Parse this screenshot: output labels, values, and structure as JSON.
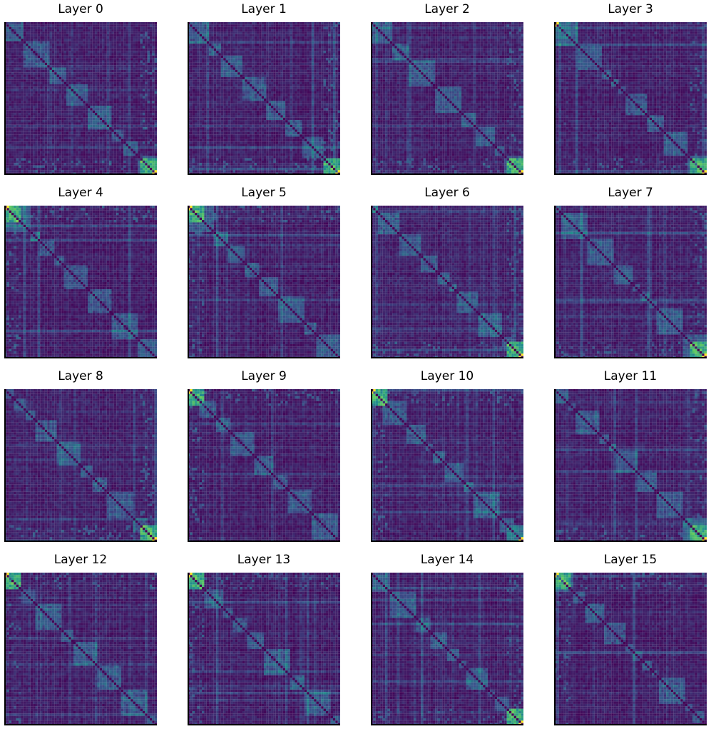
{
  "chart_data": [
    {
      "type": "heatmap",
      "title": "Layer 0",
      "xlabel": "",
      "ylabel": "",
      "colormap": "viridis",
      "grid": false,
      "ticks": false,
      "colorscale": [
        "#440154",
        "#3b528b",
        "#21918c",
        "#5ec962",
        "#fde725"
      ],
      "hotspots": [
        {
          "block": "bottom-right",
          "intensity": "high"
        }
      ]
    },
    {
      "type": "heatmap",
      "title": "Layer 1",
      "xlabel": "",
      "ylabel": "",
      "colormap": "viridis",
      "grid": false,
      "ticks": false,
      "hotspots": [
        {
          "block": "bottom-right",
          "intensity": "high"
        }
      ]
    },
    {
      "type": "heatmap",
      "title": "Layer 2",
      "xlabel": "",
      "ylabel": "",
      "colormap": "viridis",
      "grid": false,
      "ticks": false,
      "hotspots": [
        {
          "block": "bottom-right",
          "intensity": "high"
        }
      ]
    },
    {
      "type": "heatmap",
      "title": "Layer 3",
      "xlabel": "",
      "ylabel": "",
      "colormap": "viridis",
      "grid": false,
      "ticks": false,
      "hotspots": [
        {
          "block": "top-left",
          "intensity": "medium"
        },
        {
          "block": "bottom-right",
          "intensity": "high"
        }
      ]
    },
    {
      "type": "heatmap",
      "title": "Layer 4",
      "xlabel": "",
      "ylabel": "",
      "colormap": "viridis",
      "grid": false,
      "ticks": false,
      "hotspots": [
        {
          "block": "top-left",
          "intensity": "high"
        }
      ]
    },
    {
      "type": "heatmap",
      "title": "Layer 5",
      "xlabel": "",
      "ylabel": "",
      "colormap": "viridis",
      "grid": false,
      "ticks": false,
      "hotspots": [
        {
          "block": "top-left",
          "intensity": "high"
        }
      ]
    },
    {
      "type": "heatmap",
      "title": "Layer 6",
      "xlabel": "",
      "ylabel": "",
      "colormap": "viridis",
      "grid": false,
      "ticks": false,
      "hotspots": [
        {
          "block": "bottom-right",
          "intensity": "high"
        }
      ]
    },
    {
      "type": "heatmap",
      "title": "Layer 7",
      "xlabel": "",
      "ylabel": "",
      "colormap": "viridis",
      "grid": false,
      "ticks": false,
      "hotspots": [
        {
          "block": "bottom-right",
          "intensity": "high"
        }
      ]
    },
    {
      "type": "heatmap",
      "title": "Layer 8",
      "xlabel": "",
      "ylabel": "",
      "colormap": "viridis",
      "grid": false,
      "ticks": false,
      "hotspots": [
        {
          "block": "bottom-right",
          "intensity": "high"
        }
      ]
    },
    {
      "type": "heatmap",
      "title": "Layer 9",
      "xlabel": "",
      "ylabel": "",
      "colormap": "viridis",
      "grid": false,
      "ticks": false,
      "hotspots": [
        {
          "block": "top-left",
          "intensity": "high"
        }
      ]
    },
    {
      "type": "heatmap",
      "title": "Layer 10",
      "xlabel": "",
      "ylabel": "",
      "colormap": "viridis",
      "grid": false,
      "ticks": false,
      "hotspots": [
        {
          "block": "top-left",
          "intensity": "high"
        },
        {
          "block": "bottom-right",
          "intensity": "medium"
        }
      ]
    },
    {
      "type": "heatmap",
      "title": "Layer 11",
      "xlabel": "",
      "ylabel": "",
      "colormap": "viridis",
      "grid": false,
      "ticks": false,
      "hotspots": [
        {
          "block": "bottom-right",
          "intensity": "high"
        }
      ]
    },
    {
      "type": "heatmap",
      "title": "Layer 12",
      "xlabel": "",
      "ylabel": "",
      "colormap": "viridis",
      "grid": false,
      "ticks": false,
      "hotspots": [
        {
          "block": "top-left",
          "intensity": "high"
        }
      ]
    },
    {
      "type": "heatmap",
      "title": "Layer 13",
      "xlabel": "",
      "ylabel": "",
      "colormap": "viridis",
      "grid": false,
      "ticks": false,
      "hotspots": [
        {
          "block": "top-left",
          "intensity": "high"
        }
      ]
    },
    {
      "type": "heatmap",
      "title": "Layer 14",
      "xlabel": "",
      "ylabel": "",
      "colormap": "viridis",
      "grid": false,
      "ticks": false,
      "hotspots": [
        {
          "block": "bottom-right",
          "intensity": "high"
        }
      ]
    },
    {
      "type": "heatmap",
      "title": "Layer 15",
      "xlabel": "",
      "ylabel": "",
      "colormap": "viridis",
      "grid": false,
      "ticks": false,
      "hotspots": [
        {
          "block": "top-left",
          "intensity": "high"
        }
      ]
    }
  ]
}
